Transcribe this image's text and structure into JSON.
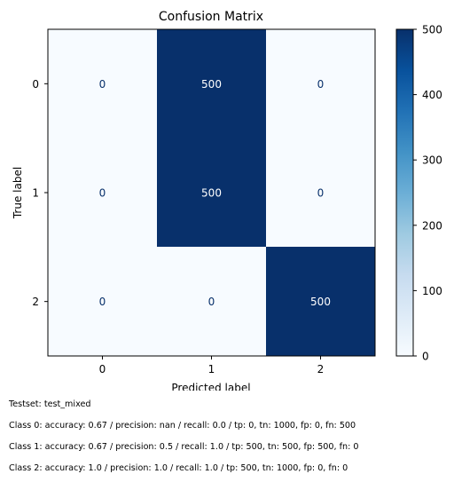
{
  "chart_data": {
    "type": "heatmap",
    "title": "Confusion Matrix",
    "xlabel": "Predicted label",
    "ylabel": "True label",
    "x_categories": [
      "0",
      "1",
      "2"
    ],
    "y_categories": [
      "0",
      "1",
      "2"
    ],
    "matrix": [
      [
        0,
        500,
        0
      ],
      [
        0,
        500,
        0
      ],
      [
        0,
        0,
        500
      ]
    ],
    "cell_labels": [
      [
        "0",
        "500",
        "0"
      ],
      [
        "0",
        "500",
        "0"
      ],
      [
        "0",
        "0",
        "500"
      ]
    ],
    "colormap": "Blues",
    "color_low": "#f7fbff",
    "color_high": "#08306b",
    "text_color_on_low": "#08306b",
    "text_color_on_high": "#ffffff",
    "colorbar": {
      "range": [
        0,
        500
      ],
      "ticks": [
        0,
        100,
        200,
        300,
        400,
        500
      ],
      "tick_labels": [
        "0",
        "100",
        "200",
        "300",
        "400",
        "500"
      ]
    }
  },
  "notes": {
    "testset": "Testset: test_mixed",
    "class0": "Class 0: accuracy: 0.67 / precision: nan / recall: 0.0 / tp: 0, tn: 1000, fp: 0, fn: 500",
    "class1": "Class 1: accuracy: 0.67 / precision: 0.5 / recall: 1.0 / tp: 500, tn: 500, fp: 500, fn: 0",
    "class2": "Class 2: accuracy: 1.0 / precision: 1.0 / recall: 1.0 / tp: 500, tn: 1000, fp: 0, fn: 0"
  }
}
